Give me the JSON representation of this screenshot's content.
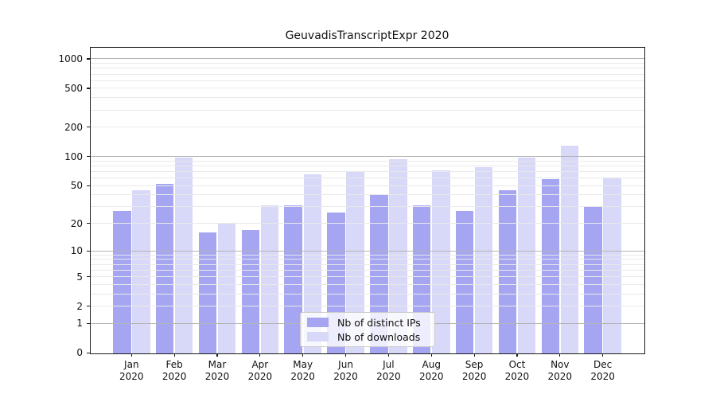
{
  "chart_data": {
    "type": "bar",
    "title": "GeuvadisTranscriptExpr 2020",
    "categories": [
      "Jan 2020",
      "Feb 2020",
      "Mar 2020",
      "Apr 2020",
      "May 2020",
      "Jun 2020",
      "Jul 2020",
      "Aug 2020",
      "Sep 2020",
      "Oct 2020",
      "Nov 2020",
      "Dec 2020"
    ],
    "series": [
      {
        "name": "Nb of distinct IPs",
        "color": "#a5a5f2",
        "values": [
          27,
          52,
          16,
          17,
          31,
          26,
          40,
          31,
          27,
          45,
          58,
          30
        ]
      },
      {
        "name": "Nb of downloads",
        "color": "#d8d8f8",
        "values": [
          45,
          97,
          20,
          31,
          65,
          70,
          93,
          72,
          78,
          97,
          130,
          60
        ]
      }
    ],
    "yscale": "log(1+y)",
    "yticks": [
      0,
      1,
      2,
      5,
      10,
      20,
      50,
      100,
      200,
      500,
      1000
    ],
    "ylim": [
      0,
      1316
    ],
    "grid": "horizontal major (powers of 10) + minor log lines, drawn over bars",
    "legend_position": "lower center"
  }
}
